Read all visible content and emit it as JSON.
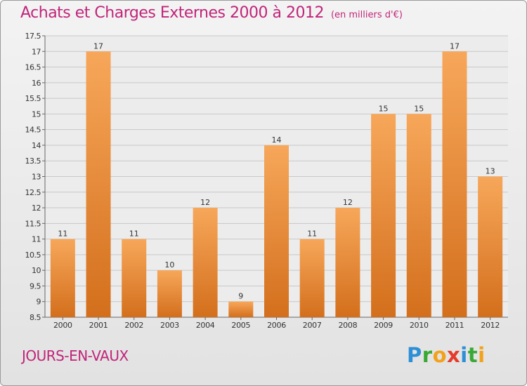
{
  "header": {
    "title": "Achats et Charges Externes 2000 à 2012",
    "unit": "(en milliers d'€)"
  },
  "footer": {
    "town": "JOURS-EN-VAUX"
  },
  "logo": {
    "text": "Proxiti",
    "letters": [
      {
        "ch": "P",
        "color": "#2e8fd6"
      },
      {
        "ch": "r",
        "color": "#39a935"
      },
      {
        "ch": "o",
        "color": "#f2a21a"
      },
      {
        "ch": "x",
        "color": "#e53b2c"
      },
      {
        "ch": "i",
        "color": "#2e8fd6"
      },
      {
        "ch": "t",
        "color": "#39a935"
      },
      {
        "ch": "i",
        "color": "#f2a21a"
      }
    ]
  },
  "colors": {
    "title": "#c0257a",
    "bar_light": "#f7a75a",
    "bar_dark": "#d36f1c",
    "grid": "#c8c8c8"
  },
  "chart_data": {
    "type": "bar",
    "title": "Achats et Charges Externes 2000 à 2012",
    "subtitle": "(en milliers d'€)",
    "categories": [
      "2000",
      "2001",
      "2002",
      "2003",
      "2004",
      "2005",
      "2006",
      "2007",
      "2008",
      "2009",
      "2010",
      "2011",
      "2012"
    ],
    "values": [
      11,
      17,
      11,
      10,
      12,
      9,
      14,
      11,
      12,
      15,
      15,
      17,
      13
    ],
    "ylim": [
      8.5,
      17.5
    ],
    "yticks": [
      "8.5",
      "9",
      "9.5",
      "10",
      "10.5",
      "11",
      "11.5",
      "12",
      "12.5",
      "13",
      "13.5",
      "14",
      "14.5",
      "15",
      "15.5",
      "16",
      "16.5",
      "17",
      "17.5"
    ],
    "grid": true,
    "xlabel": "",
    "ylabel": ""
  }
}
